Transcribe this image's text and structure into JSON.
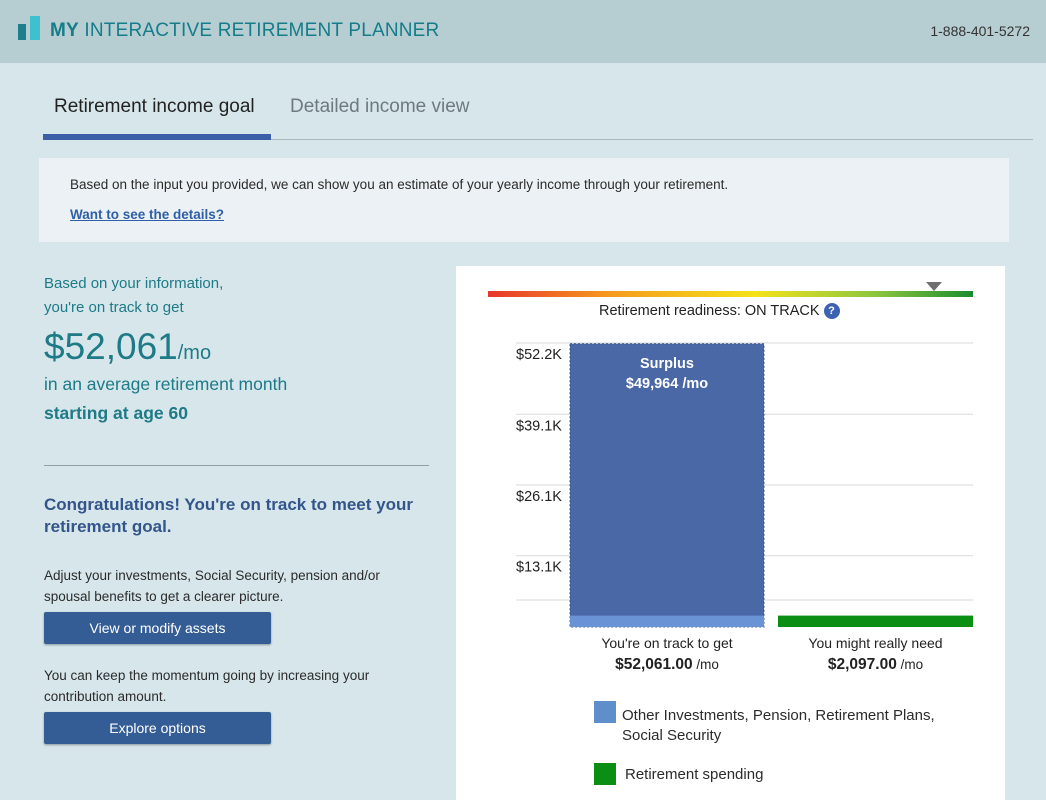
{
  "header": {
    "title_bold": "MY",
    "title_rest": " INTERACTIVE RETIREMENT PLANNER",
    "phone": "1-888-401-5272"
  },
  "tabs": [
    {
      "label": "Retirement income goal",
      "active": true
    },
    {
      "label": "Detailed income view",
      "active": false
    }
  ],
  "info": {
    "text": "Based on the input you provided, we can show you an estimate of your yearly income through your retirement.",
    "link": "Want to see the details?"
  },
  "summary": {
    "line1": "Based on your information,",
    "line2": "you're on track to get",
    "amount": "$52,061",
    "per": "/mo",
    "avg": "in an average retirement month",
    "age": "starting at age 60",
    "congrats": "Congratulations! You're on track to meet your retirement goal.",
    "para1": "Adjust your investments, Social Security, pension and/or spousal benefits to get a clearer picture.",
    "button1": "View or modify assets",
    "para2": "You can keep the momentum going by increasing your contribution amount.",
    "button2": "Explore options"
  },
  "readiness": {
    "label": "Retirement readiness: ON TRACK",
    "help": "?",
    "level": 0.92
  },
  "chart_data": {
    "type": "bar",
    "yticks": [
      "$52.2K",
      "$39.1K",
      "$26.1K",
      "$13.1K"
    ],
    "ytick_values": [
      52200,
      39100,
      26100,
      13100
    ],
    "ylim": [
      0,
      52200
    ],
    "categories": [
      {
        "label": "You're on track to get",
        "value_text": "$52,061.00",
        "unit": "/mo",
        "value": 52061,
        "base": 2097,
        "color": "#4a67a6",
        "base_color": "#6a93d6"
      },
      {
        "label": "You might really need",
        "value_text": "$2,097.00",
        "unit": "/mo",
        "value": 2097,
        "color": "#0a8f14"
      }
    ],
    "surplus_label": "Surplus",
    "surplus_value": "$49,964 /mo",
    "legend": [
      {
        "line1": "Other Investments, Pension, Retirement Plans,",
        "line2": "Social Security",
        "color": "#5e8fcb"
      },
      {
        "line1": "Retirement spending",
        "color": "#0a8f14"
      }
    ]
  }
}
